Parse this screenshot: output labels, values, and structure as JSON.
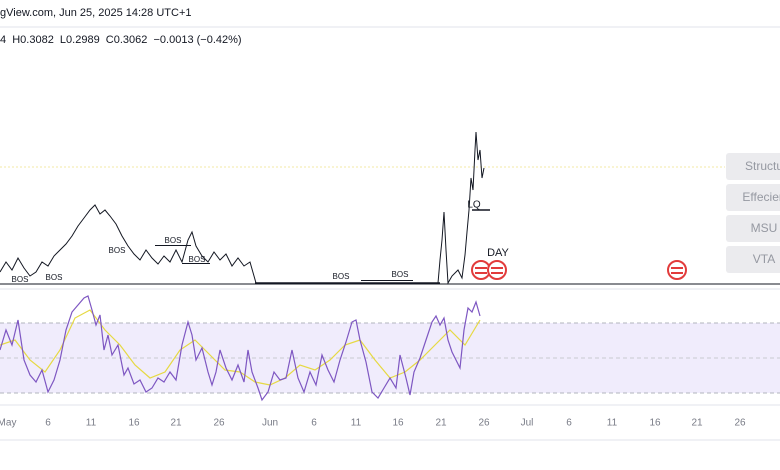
{
  "header": {
    "source": "gView.com, Jun 25, 2025 14:28 UTC+1",
    "ohlc": "4  H0.3082  L0.2989  C0.3062  −0.0013 (−0.42%)"
  },
  "indicators": [
    "Structu",
    "Effecien",
    "MSU",
    "VTA"
  ],
  "annotations": {
    "bos": [
      "BOS",
      "BOS",
      "BOS",
      "BOS",
      "BOS",
      "BOS",
      "BOS"
    ],
    "lq": "LQ",
    "day": "DAY"
  },
  "x_axis": [
    "May",
    "6",
    "11",
    "16",
    "21",
    "26",
    "Jun",
    "6",
    "11",
    "16",
    "21",
    "26",
    "Jul",
    "6",
    "11",
    "16",
    "21",
    "26"
  ]
}
